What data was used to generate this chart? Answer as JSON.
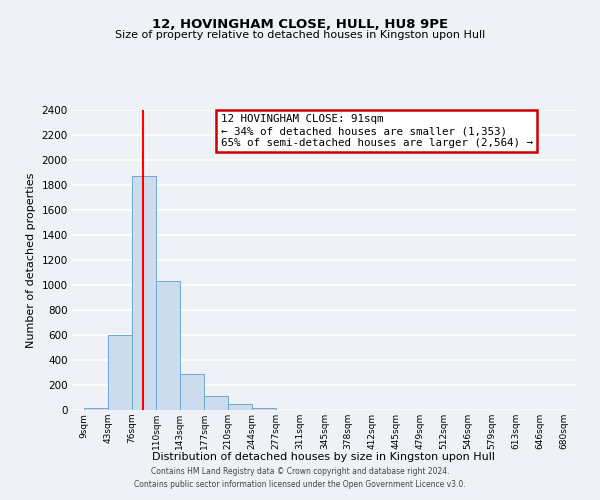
{
  "title": "12, HOVINGHAM CLOSE, HULL, HU8 9PE",
  "subtitle": "Size of property relative to detached houses in Kingston upon Hull",
  "xlabel": "Distribution of detached houses by size in Kingston upon Hull",
  "ylabel": "Number of detached properties",
  "bin_labels": [
    "9sqm",
    "43sqm",
    "76sqm",
    "110sqm",
    "143sqm",
    "177sqm",
    "210sqm",
    "244sqm",
    "277sqm",
    "311sqm",
    "345sqm",
    "378sqm",
    "412sqm",
    "445sqm",
    "479sqm",
    "512sqm",
    "546sqm",
    "579sqm",
    "613sqm",
    "646sqm",
    "680sqm"
  ],
  "bin_edges": [
    9,
    43,
    76,
    110,
    143,
    177,
    210,
    244,
    277,
    311,
    345,
    378,
    412,
    445,
    479,
    512,
    546,
    579,
    613,
    646,
    680
  ],
  "bar_heights": [
    20,
    600,
    1870,
    1030,
    290,
    110,
    45,
    20,
    0,
    0,
    0,
    0,
    0,
    0,
    0,
    0,
    0,
    0,
    0,
    0
  ],
  "bar_color": "#ccdcec",
  "bar_edge_color": "#6aaad4",
  "red_line_x": 91,
  "annotation_title": "12 HOVINGHAM CLOSE: 91sqm",
  "annotation_line1": "← 34% of detached houses are smaller (1,353)",
  "annotation_line2": "65% of semi-detached houses are larger (2,564) →",
  "annotation_box_color": "#ffffff",
  "annotation_box_edge": "#cc0000",
  "ylim": [
    0,
    2400
  ],
  "yticks": [
    0,
    200,
    400,
    600,
    800,
    1000,
    1200,
    1400,
    1600,
    1800,
    2000,
    2200,
    2400
  ],
  "footer1": "Contains HM Land Registry data © Crown copyright and database right 2024.",
  "footer2": "Contains public sector information licensed under the Open Government Licence v3.0.",
  "background_color": "#eef2f7",
  "grid_color": "#ffffff"
}
